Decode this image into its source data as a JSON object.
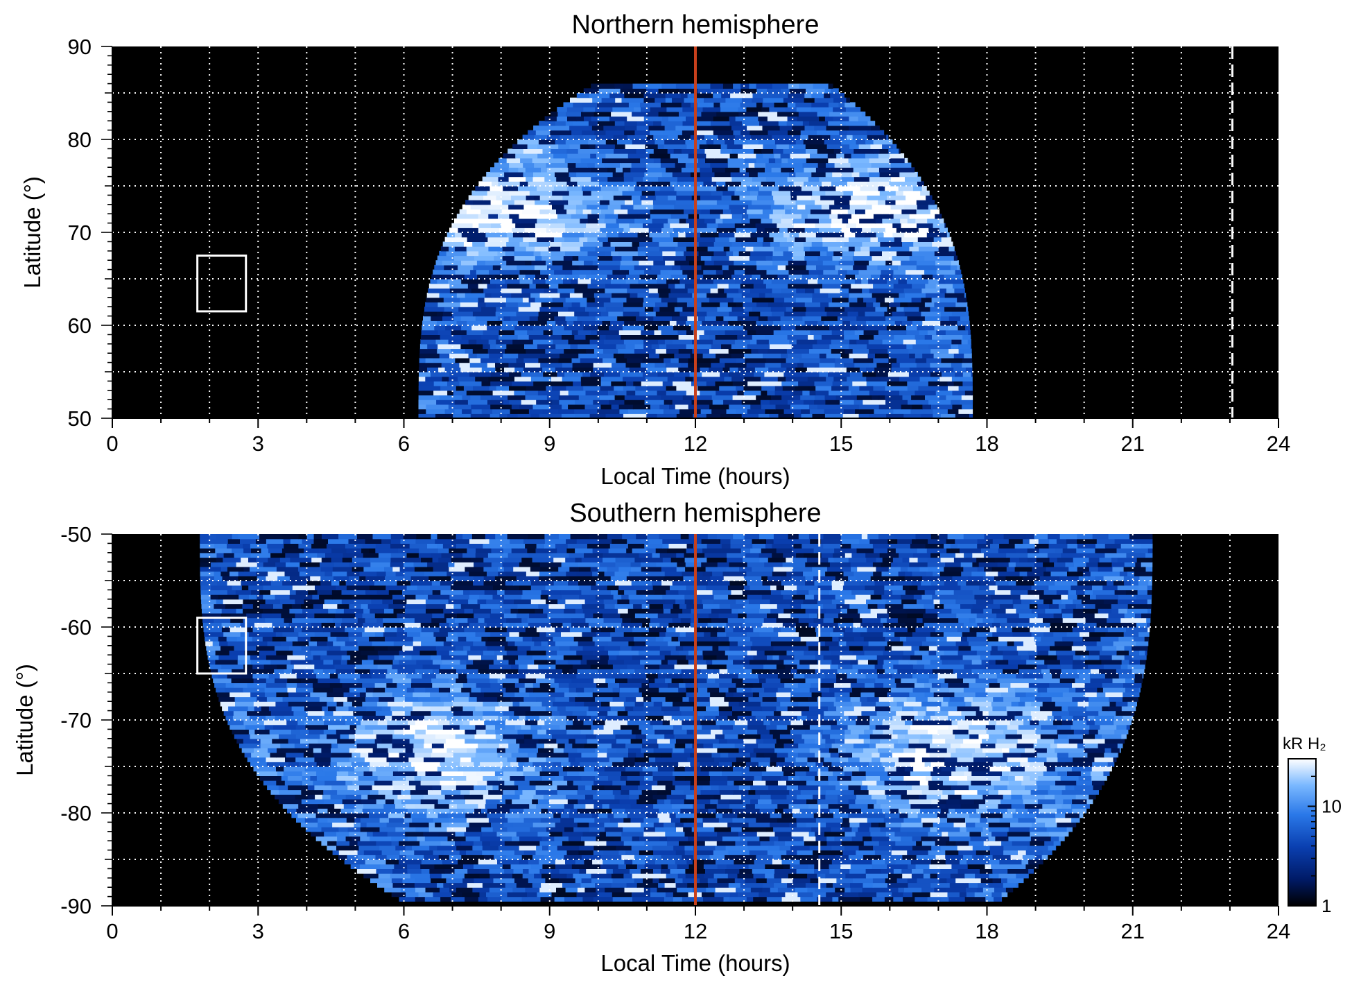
{
  "chart_data": [
    {
      "type": "heatmap",
      "title": "Northern hemisphere",
      "xlabel": "Local Time (hours)",
      "ylabel": "Latitude (°)",
      "xlim": [
        0,
        24
      ],
      "ylim": [
        50,
        90
      ],
      "xticks": [
        0,
        3,
        6,
        9,
        12,
        15,
        18,
        21,
        24
      ],
      "yticks": [
        50,
        60,
        70,
        80,
        90
      ],
      "grid": true,
      "background": "#000000",
      "noon_line": {
        "x": 12,
        "color": "#c8401c"
      },
      "dashed_line": {
        "x": 23.05,
        "color": "#ffffff"
      },
      "box": {
        "x": [
          1.75,
          2.75
        ],
        "y": [
          61.5,
          67.5
        ],
        "color": "#ffffff"
      },
      "coverage": {
        "lat": [
          50,
          86
        ],
        "lt_min_at_edge": [
          6.3,
          10.0
        ],
        "lt_max_at_edge": [
          17.7,
          14.7
        ]
      },
      "auroral_oval": {
        "peak_lat": 72,
        "lt_peaks": [
          8.3,
          15.5
        ],
        "width_deg": 4
      }
    },
    {
      "type": "heatmap",
      "title": "Southern hemisphere",
      "xlabel": "Local Time (hours)",
      "ylabel": "Latitude (°)",
      "xlim": [
        0,
        24
      ],
      "ylim": [
        -90,
        -50
      ],
      "xticks": [
        0,
        3,
        6,
        9,
        12,
        15,
        18,
        21,
        24
      ],
      "yticks": [
        -90,
        -80,
        -70,
        -60,
        -50
      ],
      "grid": true,
      "background": "#000000",
      "noon_line": {
        "x": 12,
        "color": "#c8401c"
      },
      "dashed_line": {
        "x": 14.55,
        "color": "#ffffff"
      },
      "box": {
        "x": [
          1.75,
          2.75
        ],
        "y": [
          -65,
          -59
        ],
        "color": "#ffffff"
      },
      "coverage": {
        "lat": [
          -89.5,
          -50
        ],
        "lt_min_at_edge": [
          1.8,
          5.9
        ],
        "lt_max_at_edge": [
          21.4,
          18.3
        ]
      },
      "auroral_oval": {
        "peak_lat": -74,
        "lt_peaks": [
          6.6,
          17.4
        ],
        "width_deg": 5
      }
    }
  ],
  "colorbar": {
    "title": "kR H₂",
    "scale": "log",
    "range": [
      1,
      30
    ],
    "ticks": [
      {
        "value": 1,
        "label": "1"
      },
      {
        "value": 10,
        "label": "10"
      }
    ],
    "colors": [
      "#000000",
      "#001a66",
      "#0a3fb0",
      "#2a78e8",
      "#7ab8ff",
      "#ffffff"
    ]
  }
}
